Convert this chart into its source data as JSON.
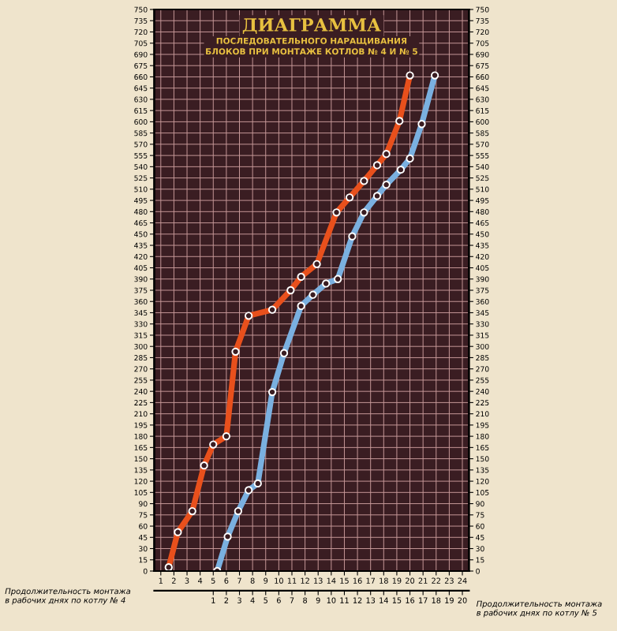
{
  "chart_data": {
    "type": "line",
    "title": "ДИАГРАММА",
    "subtitle": "ПОСЛЕДОВАТЕЛЬНОГО НАРАЩИВАНИЯ\nБЛОКОВ ПРИ МОНТАЖЕ КОТЛОВ № 4 И № 5",
    "xlabel": "Продолжительность монтажа\nв рабочих днях по котлу № 4",
    "x2label": "Продолжительность монтажа\nв рабочих днях по котлу № 5",
    "marker": "circle",
    "grid": true,
    "xlim": [
      0.5,
      24.5
    ],
    "xticks": [
      1,
      2,
      3,
      4,
      5,
      6,
      7,
      8,
      9,
      10,
      11,
      12,
      13,
      14,
      15,
      16,
      17,
      18,
      19,
      20,
      21,
      22,
      23,
      24
    ],
    "x2lim": [
      -3.5,
      20.5
    ],
    "x2ticks": [
      1,
      2,
      3,
      4,
      5,
      6,
      7,
      8,
      9,
      10,
      11,
      12,
      13,
      14,
      15,
      16,
      17,
      18,
      19,
      20
    ],
    "ylim": [
      0,
      750
    ],
    "yticks": [
      0,
      15,
      30,
      45,
      60,
      75,
      90,
      105,
      120,
      135,
      150,
      165,
      180,
      195,
      210,
      225,
      240,
      255,
      270,
      285,
      300,
      315,
      330,
      345,
      360,
      375,
      390,
      405,
      420,
      435,
      450,
      465,
      480,
      495,
      510,
      525,
      540,
      555,
      570,
      585,
      600,
      615,
      630,
      645,
      660,
      675,
      690,
      705,
      720,
      735,
      750
    ],
    "y2lim": [
      0,
      750
    ],
    "y2ticks": [
      0,
      15,
      30,
      45,
      60,
      75,
      90,
      105,
      120,
      135,
      150,
      165,
      180,
      195,
      210,
      225,
      240,
      255,
      270,
      285,
      300,
      315,
      330,
      345,
      360,
      375,
      390,
      405,
      420,
      435,
      450,
      465,
      480,
      495,
      510,
      525,
      540,
      555,
      570,
      585,
      600,
      615,
      630,
      645,
      660,
      675,
      690,
      705,
      720,
      735,
      750
    ],
    "series": [
      {
        "color": "#e8501c",
        "x": [
          1.6,
          2.3,
          3.4,
          4.3,
          5.0,
          6.0,
          6.7,
          7.7,
          9.5,
          10.9,
          11.7,
          12.9,
          14.4,
          15.4,
          16.5,
          17.5,
          18.2,
          19.2,
          20.0
        ],
        "values": [
          5,
          52,
          80,
          141,
          169,
          180,
          293,
          341,
          349,
          375,
          393,
          410,
          479,
          499,
          521,
          542,
          557,
          601,
          662
        ]
      },
      {
        "color": "#7ab0e0",
        "x": [
          5.3,
          6.1,
          6.9,
          7.7,
          8.4,
          9.5,
          10.4,
          11.7,
          12.6,
          13.6,
          14.5,
          15.6,
          16.5,
          17.5,
          18.2,
          19.3,
          20.0,
          20.9,
          21.9
        ],
        "values": [
          0,
          46,
          80,
          108,
          117,
          239,
          291,
          354,
          369,
          384,
          390,
          447,
          479,
          501,
          516,
          536,
          551,
          597,
          662
        ]
      }
    ]
  }
}
